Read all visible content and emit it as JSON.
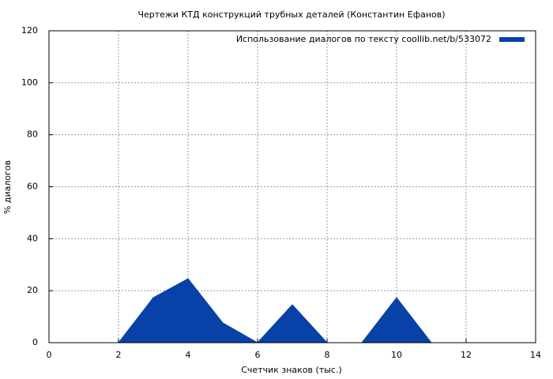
{
  "chart_data": {
    "type": "area",
    "title": "Чертежи КТД конструкций трубных деталей (Константин Ефанов)",
    "x_label": "Счетчик знаков (тыс.)",
    "y_label": "% диалогов",
    "x": [
      0,
      1,
      2,
      3,
      4,
      5,
      6,
      7,
      8,
      9,
      10,
      11
    ],
    "series": [
      {
        "name": "Использование диалогов по тексту  coollib.net/b/533072",
        "color": "#0842a8",
        "values": [
          0,
          0,
          0,
          17.3,
          24.6,
          7.6,
          0,
          14.6,
          0,
          0,
          17.3,
          0
        ]
      }
    ],
    "xlim": [
      0,
      14
    ],
    "xticks": [
      0,
      2,
      4,
      6,
      8,
      10,
      12,
      14
    ],
    "ylim": [
      0,
      120
    ],
    "yticks": [
      0,
      20,
      40,
      60,
      80,
      100,
      120
    ],
    "grid": true,
    "legend": "top-right"
  }
}
